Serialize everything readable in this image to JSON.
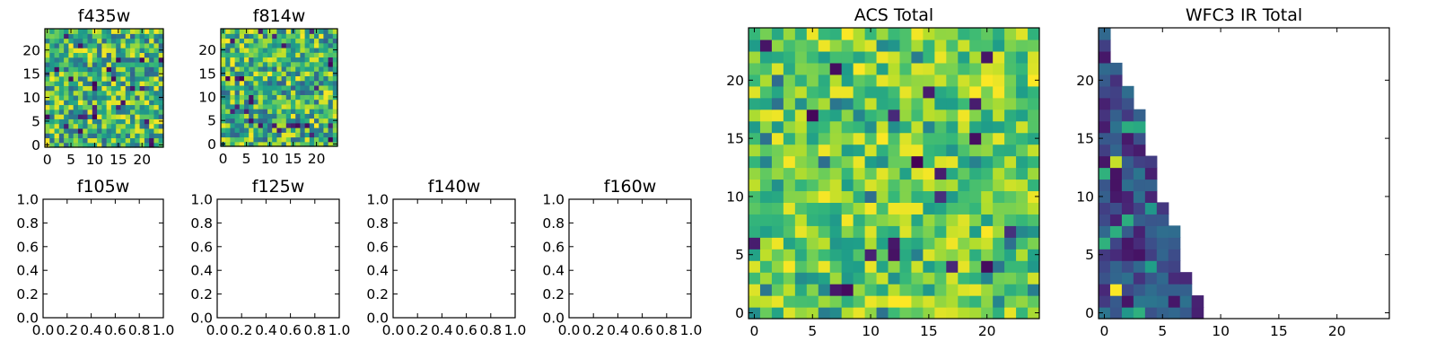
{
  "figure": {
    "background": "#ffffff",
    "axis_color": "#000000"
  },
  "chart_data": [
    {
      "id": "f435w",
      "type": "heatmap",
      "title": "f435w",
      "xlim": [
        -0.5,
        24.5
      ],
      "ylim": [
        -0.5,
        24.5
      ],
      "xticks": [
        0,
        5,
        10,
        15,
        20
      ],
      "yticks": [
        0,
        5,
        10,
        15,
        20
      ],
      "grid": false,
      "colormap": "viridis",
      "cells": "25x25 grid filled with random noise values in [0,1]"
    },
    {
      "id": "f814w",
      "type": "heatmap",
      "title": "f814w",
      "xlim": [
        -0.5,
        24.5
      ],
      "ylim": [
        -0.5,
        24.5
      ],
      "xticks": [
        0,
        5,
        10,
        15,
        20
      ],
      "yticks": [
        0,
        5,
        10,
        15,
        20
      ],
      "grid": false,
      "colormap": "viridis",
      "cells": "25x25 grid filled with random noise values in [0,1]"
    },
    {
      "id": "f105w",
      "type": "heatmap",
      "title": "f105w",
      "xlim": [
        0,
        1
      ],
      "ylim": [
        0,
        1
      ],
      "xticks": [
        "0.0",
        "0.2",
        "0.4",
        "0.6",
        "0.8",
        "1.0"
      ],
      "yticks": [
        "0.0",
        "0.2",
        "0.4",
        "0.6",
        "0.8",
        "1.0"
      ],
      "grid": false,
      "empty": true
    },
    {
      "id": "f125w",
      "type": "heatmap",
      "title": "f125w",
      "xlim": [
        0,
        1
      ],
      "ylim": [
        0,
        1
      ],
      "xticks": [
        "0.0",
        "0.2",
        "0.4",
        "0.6",
        "0.8",
        "1.0"
      ],
      "yticks": [
        "0.0",
        "0.2",
        "0.4",
        "0.6",
        "0.8",
        "1.0"
      ],
      "grid": false,
      "empty": true
    },
    {
      "id": "f140w",
      "type": "heatmap",
      "title": "f140w",
      "xlim": [
        0,
        1
      ],
      "ylim": [
        0,
        1
      ],
      "xticks": [
        "0.0",
        "0.2",
        "0.4",
        "0.6",
        "0.8",
        "1.0"
      ],
      "yticks": [
        "0.0",
        "0.2",
        "0.4",
        "0.6",
        "0.8",
        "1.0"
      ],
      "grid": false,
      "empty": true
    },
    {
      "id": "f160w",
      "type": "heatmap",
      "title": "f160w",
      "xlim": [
        0,
        1
      ],
      "ylim": [
        0,
        1
      ],
      "xticks": [
        "0.0",
        "0.2",
        "0.4",
        "0.6",
        "0.8",
        "1.0"
      ],
      "yticks": [
        "0.0",
        "0.2",
        "0.4",
        "0.6",
        "0.8",
        "1.0"
      ],
      "grid": false,
      "empty": true
    },
    {
      "id": "acs_total",
      "type": "heatmap",
      "title": "ACS Total",
      "xlim": [
        -0.5,
        24.5
      ],
      "ylim": [
        -0.5,
        24.5
      ],
      "xticks": [
        0,
        5,
        10,
        15,
        20
      ],
      "yticks": [
        0,
        5,
        10,
        15,
        20
      ],
      "grid": false,
      "colormap": "viridis",
      "cells": "25x25 grid, mostly mid-high values (green-yellow) with sparse dark outliers"
    },
    {
      "id": "wfc3_ir_total",
      "type": "heatmap",
      "title": "WFC3 IR Total",
      "xlim": [
        -0.5,
        24.5
      ],
      "ylim": [
        -0.5,
        24.5
      ],
      "xticks": [
        0,
        5,
        10,
        15,
        20
      ],
      "yticks": [
        0,
        5,
        10,
        15,
        20
      ],
      "grid": false,
      "colormap": "viridis",
      "cells": "staircase region in lower-left; column extents per row from bottom",
      "row_extents": [
        8,
        8,
        7,
        7,
        6,
        6,
        6,
        6,
        5,
        5,
        4,
        4,
        4,
        4,
        3,
        3,
        3,
        3,
        2,
        2,
        1,
        1,
        0,
        0,
        0
      ],
      "dominant_level": "low (dark blue-teal)"
    }
  ]
}
